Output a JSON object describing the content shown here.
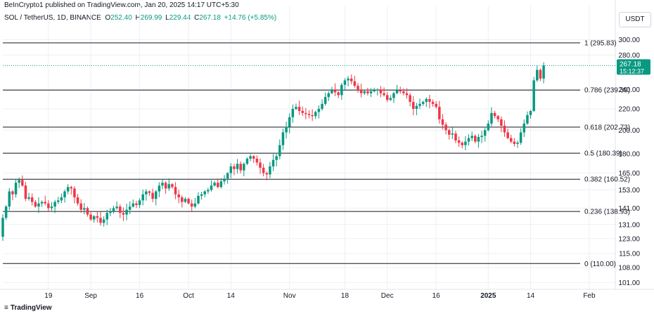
{
  "header": {
    "published": "BeInCrypto1 published on TradingView.com, Jan 20, 2025 14:17 UTC+5:30",
    "symbol": "SOL / TetherUS, 1D, BINANCE",
    "o_label": "O",
    "o_value": "252.40",
    "h_label": "H",
    "h_value": "269.99",
    "l_label": "L",
    "l_value": "229.44",
    "c_label": "C",
    "c_value": "267.18",
    "change": "+14.76 (+5.85%)"
  },
  "currency": "USDT",
  "brand": "TradingView",
  "colors": {
    "up": "#089981",
    "down": "#f23645",
    "fib": "#131722",
    "grid": "#eef0f3",
    "price_line": "#089981"
  },
  "chart_data": {
    "type": "candlestick",
    "y_scale": "log",
    "ylim": [
      98,
      318
    ],
    "y_ticks": [
      "300.00",
      "280.00",
      "240.00",
      "220.00",
      "200.00",
      "180.00",
      "165.00",
      "153.00",
      "141.00",
      "131.00",
      "123.00",
      "115.00",
      "108.00",
      "101.00"
    ],
    "x_ticks": [
      {
        "label": "19",
        "date": "2024-08-19"
      },
      {
        "label": "Sep",
        "date": "2024-09-01"
      },
      {
        "label": "16",
        "date": "2024-09-16"
      },
      {
        "label": "Oct",
        "date": "2024-10-01"
      },
      {
        "label": "14",
        "date": "2024-10-14"
      },
      {
        "label": "Nov",
        "date": "2024-11-01"
      },
      {
        "label": "18",
        "date": "2024-11-18"
      },
      {
        "label": "Dec",
        "date": "2024-12-01"
      },
      {
        "label": "16",
        "date": "2024-12-16"
      },
      {
        "label": "2025",
        "date": "2025-01-01",
        "bold": true
      },
      {
        "label": "14",
        "date": "2025-01-14"
      },
      {
        "label": "Feb",
        "date": "2025-02-01"
      }
    ],
    "x_range": [
      "2024-08-05",
      "2025-02-09"
    ],
    "fib_levels": [
      {
        "label": "1 (295.83)",
        "value": 295.83
      },
      {
        "label": "0.786 (239.39)",
        "value": 239.39
      },
      {
        "label": "0.618 (202.73)",
        "value": 202.73
      },
      {
        "label": "0.5 (180.39)",
        "value": 180.39
      },
      {
        "label": "0.382 (160.52)",
        "value": 160.52
      },
      {
        "label": "0.236 (138.93)",
        "value": 138.93
      },
      {
        "label": "0 (110.00)",
        "value": 110.0
      }
    ],
    "last_price": {
      "value": 267.18,
      "label": "267.18",
      "countdown": "15:12:37"
    },
    "closes": [
      135,
      142,
      152,
      150,
      158,
      160,
      156,
      147,
      148,
      145,
      142,
      144,
      145,
      144,
      141,
      142,
      145,
      146,
      148,
      152,
      155,
      154,
      148,
      144,
      140,
      141,
      137,
      134,
      136,
      135,
      132,
      134,
      138,
      139,
      141,
      142,
      138,
      137,
      140,
      142,
      144,
      143,
      146,
      150,
      152,
      151,
      147,
      152,
      156,
      158,
      154,
      157,
      155,
      150,
      148,
      145,
      147,
      144,
      142,
      144,
      149,
      150,
      152,
      153,
      156,
      158,
      155,
      159,
      161,
      165,
      170,
      168,
      172,
      167,
      172,
      176,
      178,
      176,
      173,
      169,
      165,
      164,
      170,
      175,
      178,
      187,
      198,
      203,
      212,
      220,
      222,
      218,
      216,
      215,
      214,
      213,
      217,
      220,
      225,
      232,
      236,
      240,
      237,
      234,
      245,
      250,
      252,
      249,
      244,
      240,
      236,
      238,
      236,
      238,
      239,
      240,
      236,
      234,
      229,
      231,
      236,
      239,
      238,
      236,
      234,
      227,
      220,
      223,
      225,
      227,
      230,
      227,
      225,
      222,
      210,
      205,
      200,
      196,
      197,
      191,
      189,
      187,
      190,
      193,
      195,
      190,
      194,
      195,
      200,
      206,
      216,
      213,
      210,
      204,
      198,
      193,
      190,
      188,
      189,
      198,
      206,
      214,
      218,
      250,
      262,
      252,
      267.18
    ]
  }
}
